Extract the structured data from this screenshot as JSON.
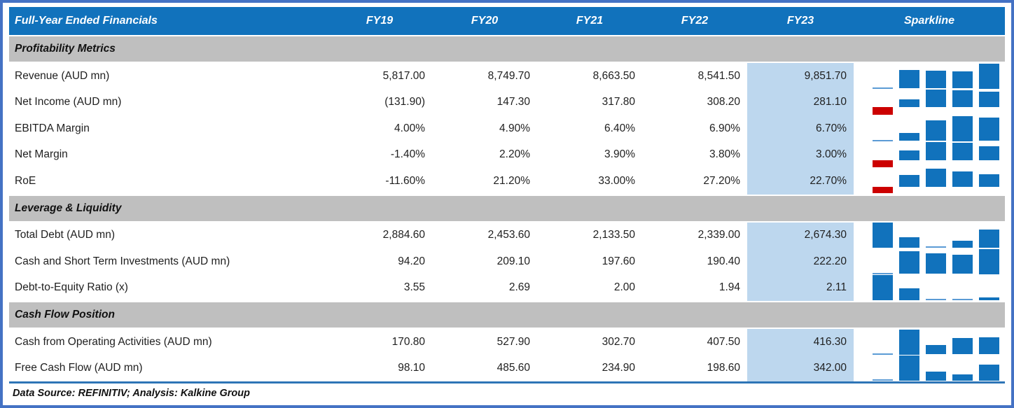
{
  "table": {
    "title": "Full-Year Ended Financials",
    "columns": [
      "FY19",
      "FY20",
      "FY21",
      "FY22",
      "FY23"
    ],
    "sparkline_header": "Sparkline",
    "highlight_column": "FY23",
    "sections": [
      {
        "name": "Profitability Metrics",
        "rows": [
          {
            "label": "Revenue (AUD mn)",
            "display": [
              "5,817.00",
              "8,749.70",
              "8,663.50",
              "8,541.50",
              "9,851.70"
            ],
            "values": [
              5817.0,
              8749.7,
              8663.5,
              8541.5,
              9851.7
            ]
          },
          {
            "label": "Net Income (AUD mn)",
            "display": [
              "(131.90)",
              "147.30",
              "317.80",
              "308.20",
              "281.10"
            ],
            "values": [
              -131.9,
              147.3,
              317.8,
              308.2,
              281.1
            ]
          },
          {
            "label": "EBITDA Margin",
            "display": [
              "4.00%",
              "4.90%",
              "6.40%",
              "6.90%",
              "6.70%"
            ],
            "values": [
              4.0,
              4.9,
              6.4,
              6.9,
              6.7
            ]
          },
          {
            "label": "Net Margin",
            "display": [
              "-1.40%",
              "2.20%",
              "3.90%",
              "3.80%",
              "3.00%"
            ],
            "values": [
              -1.4,
              2.2,
              3.9,
              3.8,
              3.0
            ]
          },
          {
            "label": "RoE",
            "display": [
              "-11.60%",
              "21.20%",
              "33.00%",
              "27.20%",
              "22.70%"
            ],
            "values": [
              -11.6,
              21.2,
              33.0,
              27.2,
              22.7
            ]
          }
        ]
      },
      {
        "name": "Leverage & Liquidity",
        "rows": [
          {
            "label": "Total Debt (AUD mn)",
            "display": [
              "2,884.60",
              "2,453.60",
              "2,133.50",
              "2,339.00",
              "2,674.30"
            ],
            "values": [
              2884.6,
              2453.6,
              2133.5,
              2339.0,
              2674.3
            ]
          },
          {
            "label": "Cash and Short Term Investments (AUD mn)",
            "display": [
              "94.20",
              "209.10",
              "197.60",
              "190.40",
              "222.20"
            ],
            "values": [
              94.2,
              209.1,
              197.6,
              190.4,
              222.2
            ]
          },
          {
            "label": "Debt-to-Equity Ratio (x)",
            "display": [
              "3.55",
              "2.69",
              "2.00",
              "1.94",
              "2.11"
            ],
            "values": [
              3.55,
              2.69,
              2.0,
              1.94,
              2.11
            ]
          }
        ]
      },
      {
        "name": "Cash Flow Position",
        "rows": [
          {
            "label": "Cash from Operating Activities (AUD mn)",
            "display": [
              "170.80",
              "527.90",
              "302.70",
              "407.50",
              "416.30"
            ],
            "values": [
              170.8,
              527.9,
              302.7,
              407.5,
              416.3
            ]
          },
          {
            "label": "Free Cash Flow (AUD mn)",
            "display": [
              "98.10",
              "485.60",
              "234.90",
              "198.60",
              "342.00"
            ],
            "values": [
              98.1,
              485.6,
              234.9,
              198.6,
              342.0
            ]
          }
        ]
      }
    ],
    "footer": "Data Source: REFINITIV; Analysis: Kalkine Group"
  },
  "colors": {
    "header_bg": "#1172BC",
    "section_bg": "#BFBFBF",
    "highlight_bg": "#BDD7EE",
    "bar_positive": "#1172BC",
    "bar_negative": "#CC0000",
    "bar_minimum": "#5B9BD5",
    "outer_border": "#4472C4",
    "footer_rule": "#2E75B6"
  }
}
